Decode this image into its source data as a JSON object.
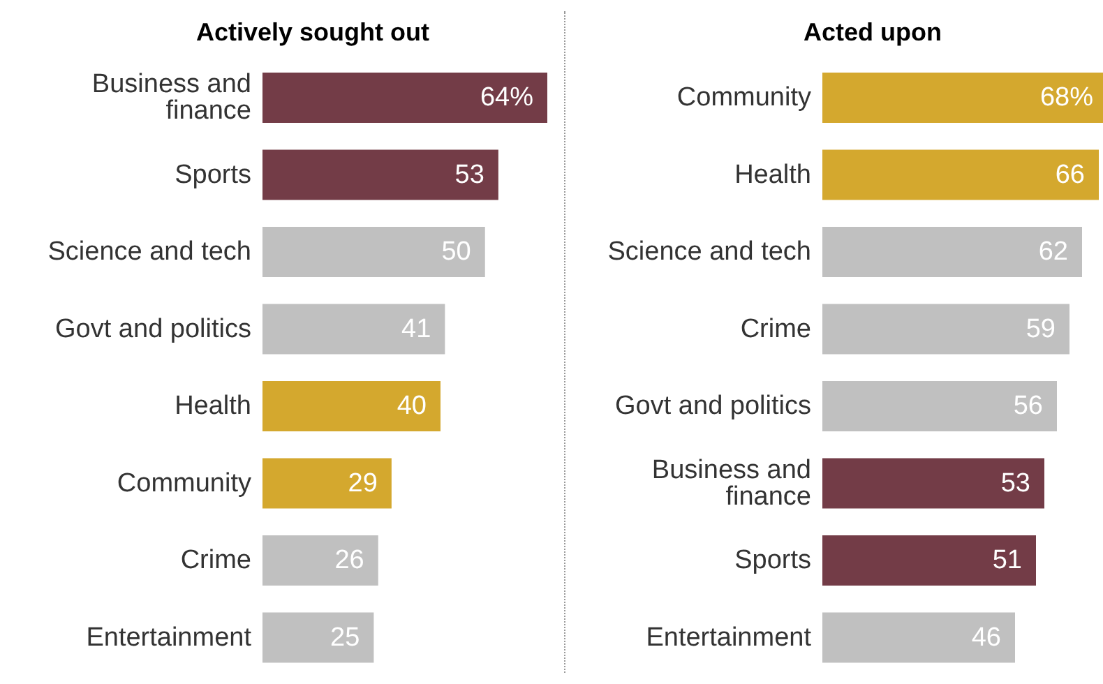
{
  "chart_data": [
    {
      "type": "bar",
      "orientation": "horizontal",
      "title": "Actively sought out",
      "categories": [
        "Business and finance",
        "Sports",
        "Science and tech",
        "Govt and politics",
        "Health",
        "Community",
        "Crime",
        "Entertainment"
      ],
      "values": [
        64,
        53,
        50,
        41,
        40,
        29,
        26,
        25
      ],
      "colors": [
        "#733c47",
        "#733c47",
        "#c0c0c0",
        "#c0c0c0",
        "#d4a82e",
        "#d4a82e",
        "#c0c0c0",
        "#c0c0c0"
      ],
      "value_labels": [
        "64%",
        "53",
        "50",
        "41",
        "40",
        "29",
        "26",
        "25"
      ]
    },
    {
      "type": "bar",
      "orientation": "horizontal",
      "title": "Acted upon",
      "categories": [
        "Community",
        "Health",
        "Science and tech",
        "Crime",
        "Govt and politics",
        "Business and finance",
        "Sports",
        "Entertainment"
      ],
      "values": [
        68,
        66,
        62,
        59,
        56,
        53,
        51,
        46
      ],
      "colors": [
        "#d4a82e",
        "#d4a82e",
        "#c0c0c0",
        "#c0c0c0",
        "#c0c0c0",
        "#733c47",
        "#733c47",
        "#c0c0c0"
      ],
      "value_labels": [
        "68%",
        "66",
        "62",
        "59",
        "56",
        "53",
        "51",
        "46"
      ]
    }
  ]
}
